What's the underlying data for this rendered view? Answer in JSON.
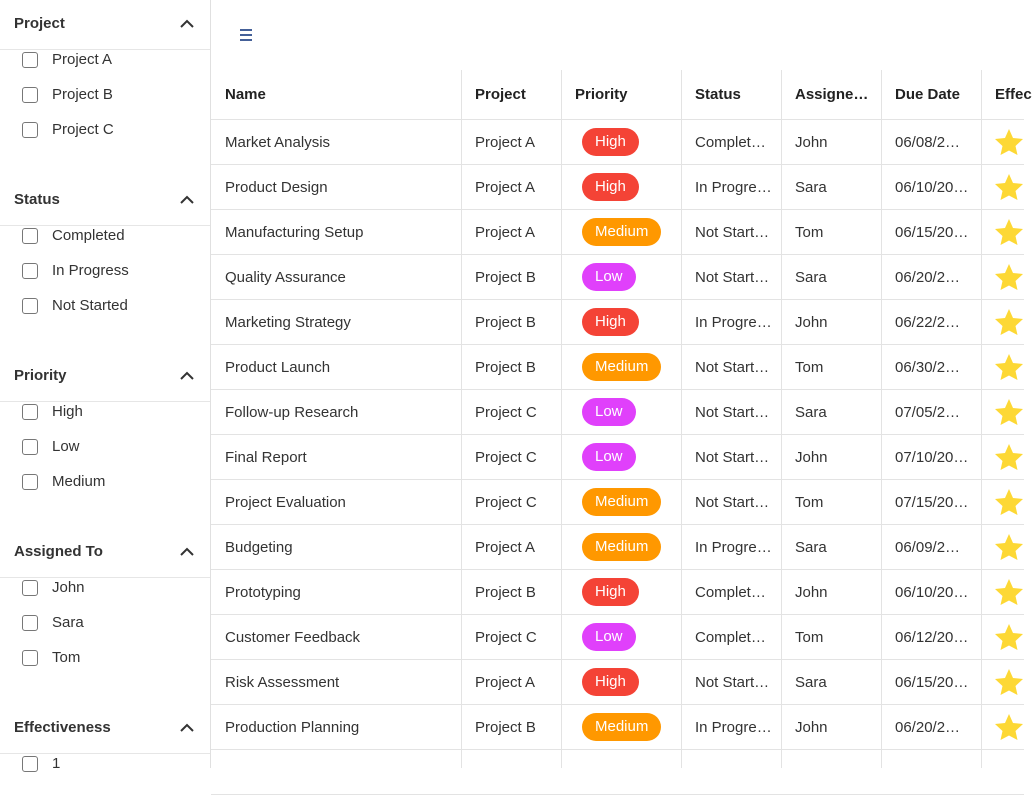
{
  "sidebar": {
    "sections": [
      {
        "title": "Project",
        "options": [
          "Project A",
          "Project B",
          "Project C"
        ]
      },
      {
        "title": "Status",
        "options": [
          "Completed",
          "In Progress",
          "Not Started"
        ]
      },
      {
        "title": "Priority",
        "options": [
          "High",
          "Low",
          "Medium"
        ]
      },
      {
        "title": "Assigned To",
        "options": [
          "John",
          "Sara",
          "Tom"
        ]
      },
      {
        "title": "Effectiveness",
        "options": [
          "1"
        ]
      }
    ]
  },
  "table": {
    "columns": [
      "Name",
      "Project",
      "Priority",
      "Status",
      "Assigne…",
      "Due Date",
      "Effec"
    ],
    "rows": [
      [
        "Market Analysis",
        "Project A",
        "High",
        "Complet…",
        "John",
        "06/08/2…"
      ],
      [
        "Product Design",
        "Project A",
        "High",
        "In Progre…",
        "Sara",
        "06/10/20…"
      ],
      [
        "Manufacturing Setup",
        "Project A",
        "Medium",
        "Not Start…",
        "Tom",
        "06/15/20…"
      ],
      [
        "Quality Assurance",
        "Project B",
        "Low",
        "Not Start…",
        "Sara",
        "06/20/2…"
      ],
      [
        "Marketing Strategy",
        "Project B",
        "High",
        "In Progre…",
        "John",
        "06/22/2…"
      ],
      [
        "Product Launch",
        "Project B",
        "Medium",
        "Not Start…",
        "Tom",
        "06/30/2…"
      ],
      [
        "Follow-up Research",
        "Project C",
        "Low",
        "Not Start…",
        "Sara",
        "07/05/2…"
      ],
      [
        "Final Report",
        "Project C",
        "Low",
        "Not Start…",
        "John",
        "07/10/20…"
      ],
      [
        "Project Evaluation",
        "Project C",
        "Medium",
        "Not Start…",
        "Tom",
        "07/15/20…"
      ],
      [
        "Budgeting",
        "Project A",
        "Medium",
        "In Progre…",
        "Sara",
        "06/09/2…"
      ],
      [
        "Prototyping",
        "Project B",
        "High",
        "Complet…",
        "John",
        "06/10/20…"
      ],
      [
        "Customer Feedback",
        "Project C",
        "Low",
        "Complet…",
        "Tom",
        "06/12/20…"
      ],
      [
        "Risk Assessment",
        "Project A",
        "High",
        "Not Start…",
        "Sara",
        "06/15/20…"
      ],
      [
        "Production Planning",
        "Project B",
        "Medium",
        "In Progre…",
        "John",
        "06/20/2…"
      ]
    ]
  },
  "badge_colors": {
    "High": "#f44336",
    "Medium": "#ff9800",
    "Low": "#e040fb"
  }
}
